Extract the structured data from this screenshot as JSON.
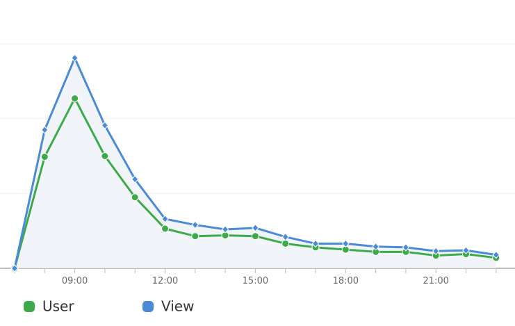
{
  "chart_data": {
    "type": "line",
    "categories": [
      null,
      null,
      "09:00",
      null,
      null,
      "12:00",
      null,
      null,
      "15:00",
      null,
      null,
      "18:00",
      null,
      null,
      "21:00",
      null,
      null
    ],
    "series": [
      {
        "name": "User",
        "color": "#3daa4a",
        "marker": "circle",
        "values": [
          0,
          149,
          227,
          150,
          95,
          53,
          43,
          44,
          43,
          33,
          28,
          25,
          22,
          22,
          17,
          19,
          14
        ]
      },
      {
        "name": "View",
        "color": "#4a8ad8",
        "marker": "diamond",
        "values": [
          0,
          185,
          281,
          191,
          119,
          66,
          58,
          52,
          54,
          42,
          33,
          33,
          29,
          28,
          23,
          24,
          18
        ]
      }
    ],
    "ylim": [
      0,
      300
    ],
    "yticks": [
      0,
      100,
      200,
      300
    ],
    "grid": true
  }
}
